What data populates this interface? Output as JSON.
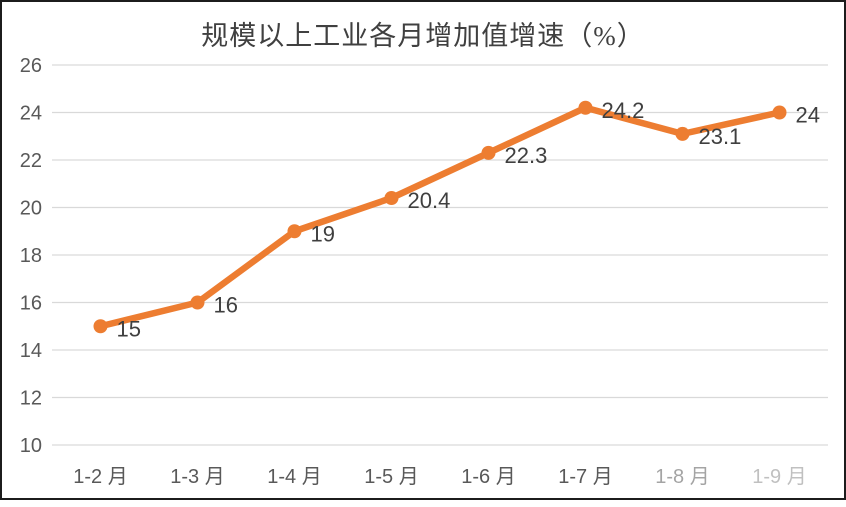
{
  "chart_data": {
    "type": "line",
    "title": "规模以上工业各月增加值增速（%）",
    "categories": [
      "1-2 月",
      "1-3 月",
      "1-4 月",
      "1-5 月",
      "1-6 月",
      "1-7 月",
      "1-8 月",
      "1-9 月"
    ],
    "category_opacity": [
      1,
      1,
      1,
      1,
      1,
      1,
      0.55,
      0.38
    ],
    "values": [
      15,
      16,
      19,
      20.4,
      22.3,
      24.2,
      23.1,
      24
    ],
    "data_labels": [
      "15",
      "16",
      "19",
      "20.4",
      "22.3",
      "24.2",
      "23.1",
      "24"
    ],
    "ylim": [
      10,
      26
    ],
    "ytick_step": 2,
    "yticks": [
      10,
      12,
      14,
      16,
      18,
      20,
      22,
      24,
      26
    ],
    "grid": true,
    "legend": "none",
    "colors": {
      "line": "#ED7D31",
      "marker": "#ED7D31",
      "grid": "#D9D9D9",
      "axis_text": "#595959",
      "data_label_text": "#3F3F3F",
      "title_text": "#404040"
    }
  }
}
